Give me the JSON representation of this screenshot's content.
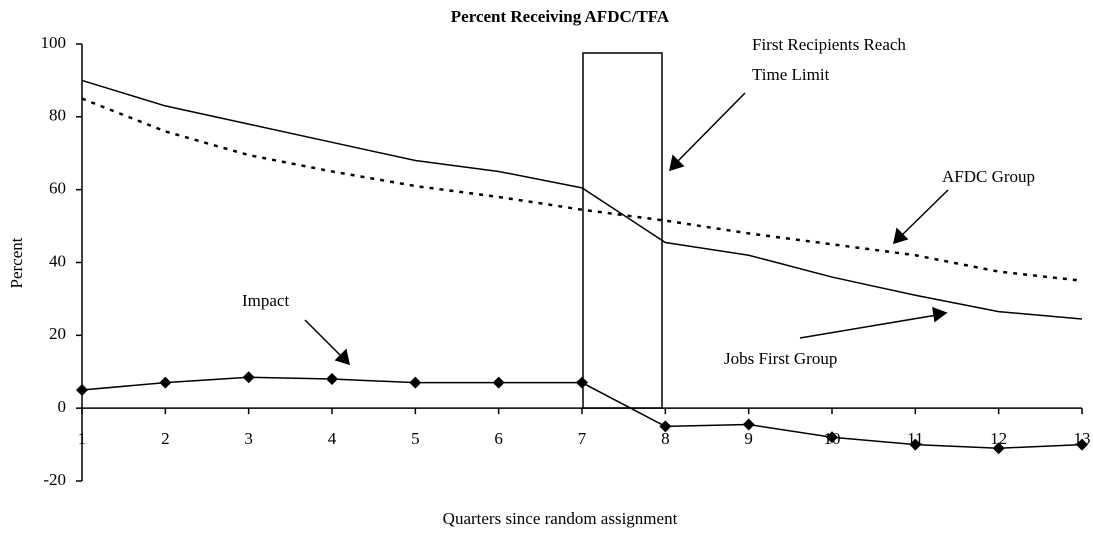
{
  "chart_data": {
    "type": "line",
    "title": "Percent Receiving AFDC/TFA",
    "x_label": "Quarters since random assignment",
    "y_label": "Percent",
    "x": [
      1,
      2,
      3,
      4,
      5,
      6,
      7,
      8,
      9,
      10,
      11,
      12,
      13
    ],
    "xlim": [
      1,
      13
    ],
    "xticks": [
      1,
      2,
      3,
      4,
      5,
      6,
      7,
      8,
      9,
      10,
      11,
      12,
      13
    ],
    "ylim": [
      -20,
      100
    ],
    "yticks": [
      -20,
      0,
      20,
      40,
      60,
      80,
      100
    ],
    "grid": false,
    "series": [
      {
        "name": "Jobs First Group",
        "color": "#000000",
        "line_style": "solid",
        "marker": "none",
        "values": [
          90,
          83,
          78,
          73,
          68,
          65,
          60.5,
          45.5,
          42,
          36,
          31,
          26.5,
          24.5
        ]
      },
      {
        "name": "AFDC Group",
        "color": "#000000",
        "line_style": "dotted",
        "marker": "none",
        "values": [
          85,
          76,
          69.5,
          65,
          61,
          58,
          54.5,
          51.5,
          48,
          45,
          42,
          37.5,
          35
        ]
      },
      {
        "name": "Impact",
        "color": "#000000",
        "line_style": "solid",
        "marker": "diamond",
        "values": [
          5,
          7,
          8.5,
          8,
          7,
          7,
          7,
          -5,
          -4.5,
          -8,
          -10,
          -11,
          -10
        ]
      }
    ],
    "annotations": [
      "First Recipients Reach",
      "Time Limit"
    ]
  }
}
